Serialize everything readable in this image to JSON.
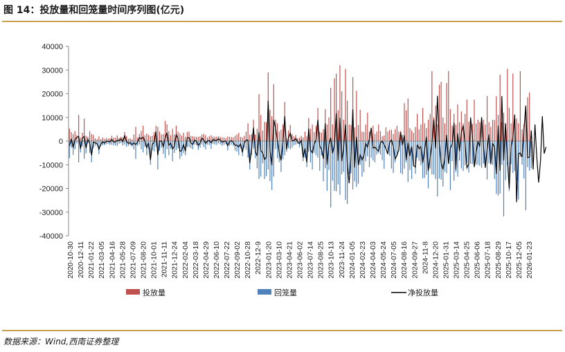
{
  "header": {
    "title": "图 14：投放量和回笼量时间序列图(亿元)"
  },
  "footer": {
    "source": "数据来源：Wind,西南证券整理"
  },
  "colors": {
    "inject": "#c0504d",
    "withdraw": "#4f81bd",
    "net": "#000000",
    "rule": "#c8a04a"
  },
  "chart_data": {
    "type": "bar",
    "title": "",
    "xlabel": "",
    "ylabel": "",
    "ylim": [
      -40000,
      40000
    ],
    "yticks": [
      40000,
      30000,
      20000,
      10000,
      0,
      -10000,
      -20000,
      -30000,
      -40000
    ],
    "grid": false,
    "legend_position": "bottom",
    "x_tick_labels": [
      "2020-10-30",
      "2020-12-11",
      "2021-01-22",
      "2021-03-05",
      "2021-04-16",
      "2021-05-28",
      "2021-07-09",
      "2021-08-20",
      "2021-10-01",
      "2021-11-11",
      "2021-12-24",
      "2022-02-04",
      "2022-03-18",
      "2022-04-29",
      "2022-06-10",
      "2022-07-22",
      "2022-09-02",
      "2022-10-28",
      "2022-12-9",
      "2023-01-20",
      "2023-03-10",
      "2023-04-21",
      "2023-06-02",
      "2023-07-14",
      "2023-08-25",
      "2023-10-13",
      "2023-11-24",
      "2024-01-05",
      "2024-02-23",
      "2024-04-03",
      "2024-05-24",
      "2024-07-05",
      "2024-08-16",
      "2024-09-27",
      "2024-11-8",
      "2024-12-20",
      "2025-01-31",
      "2025-03-14",
      "2025-04-25",
      "2025-06-06",
      "2025-07-18",
      "2025-08-29",
      "2025-10-17",
      "2025-12-05",
      "2026-01-23"
    ],
    "series": [
      {
        "name": "投放量",
        "type": "bar",
        "values": [
          5200,
          3800,
          3000,
          4200,
          2500,
          11000,
          1500,
          3500,
          9500,
          2200,
          1800,
          4200,
          3000,
          2600,
          1200,
          800,
          2000,
          800,
          1500,
          900,
          1300,
          1100,
          1200,
          2200,
          1400,
          1500,
          2400,
          1400,
          1800,
          1600,
          3800,
          2200,
          1000,
          1200,
          700,
          2800,
          6000,
          1500,
          3000,
          4300,
          6500,
          2400,
          3200,
          2600,
          2000,
          2300,
          3800,
          6500,
          6000,
          4000,
          2800,
          3000,
          8500,
          7000,
          4200,
          2500,
          5200,
          2800,
          6500,
          4000,
          3200,
          2300,
          3500,
          1800,
          3800,
          4000,
          2200,
          2000,
          1900,
          1800,
          1800,
          2000,
          2800,
          3000,
          2500,
          1500,
          2000,
          2500,
          1900,
          1800,
          1900,
          2000,
          1800,
          1500,
          1500,
          1300,
          2000,
          1800,
          1700,
          1500,
          2200,
          2800,
          3500,
          1800,
          1500,
          2200,
          4000,
          7500,
          2600,
          3000,
          9000,
          2800,
          5200,
          19800,
          11000,
          4400,
          8200,
          8000,
          29000,
          13200,
          10500,
          24000,
          9000,
          7500,
          4000,
          4800,
          7000,
          16500,
          1000,
          4500,
          6800,
          3000,
          2000,
          2600,
          1200,
          1500,
          2200,
          1500,
          4000,
          2000,
          9800,
          5200,
          7000,
          3800,
          6500,
          14000,
          4000,
          3500,
          5000,
          13500,
          7000,
          10000,
          22500,
          7000,
          26500,
          28500,
          13000,
          32000,
          21000,
          9000,
          30500,
          17000,
          7000,
          6800,
          27000,
          5800,
          21200,
          6800,
          13200,
          4000,
          3800,
          7000,
          12000,
          4000,
          4500,
          6500,
          3000,
          4000,
          7000,
          4200,
          2000,
          2400,
          5800,
          4000,
          4700,
          4800,
          3000,
          5000,
          6500,
          4000,
          4300,
          2600,
          16000,
          13000,
          18000,
          5500,
          4500,
          3500,
          6000,
          11500,
          5000,
          7000,
          14000,
          7500,
          5500,
          9000,
          11500,
          29500,
          10000,
          15000,
          7000,
          23800,
          25000,
          10000,
          7500,
          24500,
          29600,
          13500,
          6500,
          11500,
          7000,
          15500,
          8000,
          12500,
          7500,
          11500,
          17500,
          8200,
          7000,
          7300,
          17500,
          7500,
          9000,
          8000,
          8000,
          9000,
          7000,
          19000,
          8000,
          6000,
          9000,
          8800,
          19000,
          11000,
          28000,
          8000,
          12000,
          7000,
          30500,
          14000,
          7500,
          28500,
          7000,
          9500,
          7500,
          29500,
          5000,
          7000,
          12000,
          18500,
          20500
        ]
      },
      {
        "name": "回笼量",
        "type": "bar",
        "values": [
          -7200,
          -2800,
          -5800,
          -3500,
          -1000,
          -9000,
          -4800,
          -2300,
          -7500,
          -5200,
          -1000,
          -5000,
          -9000,
          -3000,
          -2000,
          -1800,
          -5500,
          -2200,
          -1800,
          -1800,
          -1400,
          -1200,
          -1600,
          -1500,
          -1800,
          -1900,
          -2000,
          -1200,
          -800,
          -1800,
          -1500,
          -2400,
          -2000,
          -1800,
          -2300,
          -3500,
          -7500,
          -2000,
          -1500,
          -3400,
          -4800,
          -2500,
          -6000,
          -3300,
          -10000,
          -3800,
          -4300,
          -2400,
          -12000,
          -4000,
          -2800,
          -5400,
          -7200,
          -3400,
          -6000,
          -3300,
          -8500,
          -5000,
          -3800,
          -3000,
          -7500,
          -6300,
          -5000,
          -6000,
          -2500,
          -2500,
          -3000,
          -3400,
          -1500,
          -1800,
          -3700,
          -2800,
          -1500,
          -2500,
          -3500,
          -1500,
          -1700,
          -3300,
          -1200,
          -1500,
          -1600,
          -1000,
          -1400,
          -2000,
          -1600,
          -1300,
          -4000,
          -2000,
          -1500,
          -2000,
          -4000,
          -4500,
          -6000,
          -3000,
          -6300,
          -2800,
          -3700,
          -7000,
          -12000,
          -6000,
          -3300,
          -7200,
          -11500,
          -16000,
          -15000,
          -9400,
          -16000,
          -14800,
          -12000,
          -17000,
          -20700,
          -15000,
          -3400,
          -7200,
          -8900,
          -13000,
          -7700,
          -6000,
          -4500,
          -3000,
          -3500,
          -2800,
          -1800,
          -1500,
          -1200,
          -2600,
          -1800,
          -8500,
          -7000,
          -11000,
          -4500,
          -9000,
          -12000,
          -5000,
          -6000,
          -7000,
          -12500,
          -6000,
          -17000,
          -11500,
          -21000,
          -12200,
          -28000,
          -16700,
          -21000,
          -21200,
          -18300,
          -22700,
          -14000,
          -13000,
          -24800,
          -26600,
          -14000,
          -13600,
          -20400,
          -17000,
          -19300,
          -18000,
          -10000,
          -15000,
          -13200,
          -8500,
          -6400,
          -11000,
          -7000,
          -8200,
          -9000,
          -5700,
          -5000,
          -5700,
          -8000,
          -11700,
          -3000,
          -4800,
          -6300,
          -11600,
          -13500,
          -9000,
          -6400,
          -4300,
          -13500,
          -14000,
          -11600,
          -9000,
          -17300,
          -12200,
          -16000,
          -10600,
          -13800,
          -7000,
          -8300,
          -10200,
          -15700,
          -15600,
          -14200,
          -20000,
          -11600,
          -14100,
          -14200,
          -16000,
          -23400,
          -15800,
          -16300,
          -19200,
          -13000,
          -13600,
          -8300,
          -20700,
          -8500,
          -16700,
          -13000,
          -15000,
          -8200,
          -11500,
          -12600,
          -10200,
          -9200,
          -13300,
          -9600,
          -9700,
          -9600,
          -10000,
          -10000,
          -10500,
          -11300,
          -9500,
          -11000,
          -16200,
          -9300,
          -10000,
          -10000,
          -16000,
          -22300,
          -23000,
          -22200,
          -10000,
          -31800,
          -16500,
          -10000,
          -21100,
          -9700,
          -13500,
          -12600,
          -16700,
          -24700,
          -6700,
          -10000,
          -15800,
          -29200,
          -11000,
          -12500,
          -11500
        ]
      },
      {
        "name": "净投放量",
        "type": "line",
        "values": [
          -2000,
          1000,
          -2800,
          700,
          1500,
          2000,
          -3300,
          1200,
          2000,
          -3000,
          800,
          -800,
          -6000,
          -400,
          -800,
          -1000,
          -3500,
          -1400,
          -300,
          -900,
          -100,
          -100,
          -400,
          700,
          -400,
          -400,
          400,
          200,
          1000,
          -200,
          2300,
          -200,
          -1000,
          -600,
          -1600,
          -700,
          -1500,
          -500,
          1500,
          900,
          1700,
          -100,
          -2800,
          -700,
          -8000,
          -1500,
          -500,
          4100,
          -6000,
          0,
          0,
          -2400,
          1300,
          3600,
          -1800,
          -800,
          -3300,
          -2200,
          2700,
          1000,
          -4300,
          -4000,
          -1500,
          -4200,
          1300,
          1500,
          -800,
          -1400,
          400,
          0,
          -1900,
          -800,
          1300,
          500,
          -1000,
          0,
          300,
          -800,
          700,
          300,
          300,
          1000,
          400,
          -500,
          -100,
          0,
          -2000,
          -200,
          200,
          -500,
          -1800,
          -1700,
          -2500,
          -1200,
          -4800,
          -600,
          300,
          500,
          -9400,
          -3000,
          5700,
          -4400,
          -6300,
          3800,
          -4000,
          -5000,
          -7800,
          -6800,
          17000,
          -3800,
          -10200,
          9000,
          5600,
          300,
          -4900,
          -8200,
          -700,
          10500,
          -3500,
          1500,
          3300,
          200,
          200,
          1100,
          -300,
          -1100,
          400,
          -7000,
          -3000,
          -9000,
          5300,
          -3800,
          -5000,
          -1200,
          500,
          9000,
          -2000,
          -3500,
          -7500,
          7500,
          -10000,
          -1500,
          1500,
          -5200,
          -1500,
          11800,
          -8300,
          9800,
          -8500,
          -2700,
          7000,
          -9700,
          -17800,
          -6800,
          13400,
          -11200,
          1800,
          -10200,
          -5800,
          -8000,
          -6200,
          -1000,
          -2600,
          1000,
          5600,
          -3000,
          -2500,
          -3500,
          -4300,
          -700,
          0,
          -1500,
          -3300,
          -5500,
          -600,
          500,
          -2300,
          -7600,
          -6000,
          -3600,
          3700,
          -1700,
          2500,
          -8000,
          -600,
          -6400,
          -2300,
          -10200,
          -11000,
          -1500,
          -3300,
          -2300,
          -9200,
          -3900,
          1800,
          -12600,
          -7000,
          -1200,
          9100,
          -3100,
          19100,
          -1000,
          -9300,
          -12000,
          -7400,
          2600,
          -9600,
          -3000,
          -1300,
          7700,
          -12000,
          3300,
          -4300,
          3600,
          6600,
          -1000,
          -11300,
          -9700,
          10000,
          2000,
          -11000,
          -4800,
          0,
          -2400,
          10100,
          -2000,
          -11300,
          -3500,
          2900,
          -9600,
          -1000,
          -2500,
          -13900,
          6500,
          -12500,
          19000,
          -8200,
          7500,
          -7500,
          -20000,
          -2500,
          1600,
          11200,
          -25800,
          -5300,
          -5000,
          -6800,
          4600,
          15000,
          -7000,
          -6700,
          4500,
          -12000,
          7000,
          -7000,
          -17500,
          -8500,
          10500,
          -5300,
          -2500
        ]
      }
    ]
  }
}
